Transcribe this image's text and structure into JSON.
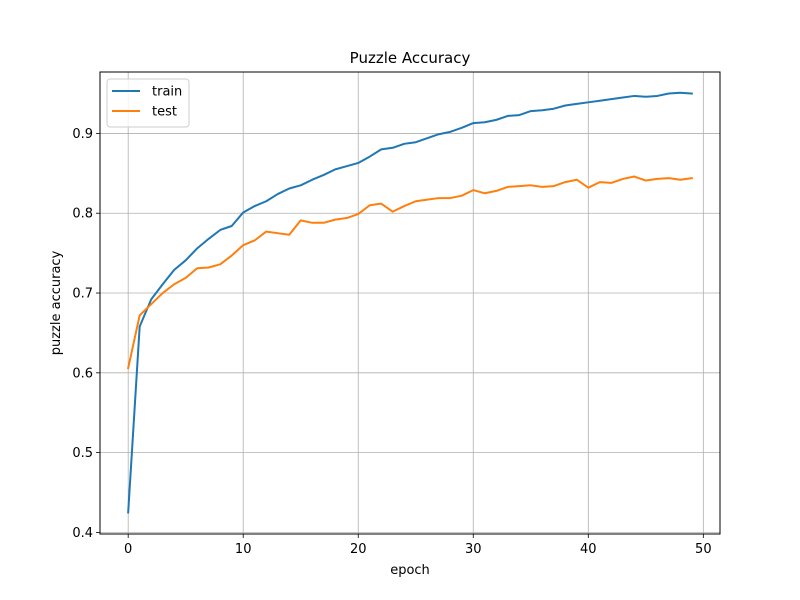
{
  "chart_data": {
    "type": "line",
    "title": "Puzzle Accuracy",
    "xlabel": "epoch",
    "ylabel": "puzzle accuracy",
    "xlim": [
      -2.45,
      51.45
    ],
    "ylim": [
      0.398,
      0.977
    ],
    "xticks": [
      0,
      10,
      20,
      30,
      40,
      50
    ],
    "yticks": [
      0.4,
      0.5,
      0.6,
      0.7,
      0.8,
      0.9
    ],
    "grid": true,
    "legend_position": "top-left",
    "x": [
      0,
      1,
      2,
      3,
      4,
      5,
      6,
      7,
      8,
      9,
      10,
      11,
      12,
      13,
      14,
      15,
      16,
      17,
      18,
      19,
      20,
      21,
      22,
      23,
      24,
      25,
      26,
      27,
      28,
      29,
      30,
      31,
      32,
      33,
      34,
      35,
      36,
      37,
      38,
      39,
      40,
      41,
      42,
      43,
      44,
      45,
      46,
      47,
      48,
      49
    ],
    "series": [
      {
        "name": "train",
        "color": "#1f77b4",
        "values": [
          0.425,
          0.658,
          0.692,
          0.711,
          0.729,
          0.741,
          0.756,
          0.768,
          0.779,
          0.784,
          0.801,
          0.809,
          0.815,
          0.824,
          0.831,
          0.835,
          0.842,
          0.848,
          0.855,
          0.859,
          0.863,
          0.871,
          0.88,
          0.882,
          0.887,
          0.889,
          0.894,
          0.899,
          0.902,
          0.907,
          0.913,
          0.914,
          0.917,
          0.922,
          0.923,
          0.928,
          0.929,
          0.931,
          0.935,
          0.937,
          0.939,
          0.941,
          0.943,
          0.945,
          0.947,
          0.946,
          0.947,
          0.95,
          0.951,
          0.95
        ]
      },
      {
        "name": "test",
        "color": "#ff7f0e",
        "values": [
          0.606,
          0.672,
          0.686,
          0.7,
          0.711,
          0.719,
          0.731,
          0.732,
          0.736,
          0.747,
          0.76,
          0.766,
          0.777,
          0.775,
          0.773,
          0.791,
          0.788,
          0.788,
          0.792,
          0.794,
          0.799,
          0.81,
          0.812,
          0.802,
          0.809,
          0.815,
          0.817,
          0.819,
          0.819,
          0.822,
          0.829,
          0.825,
          0.828,
          0.833,
          0.834,
          0.835,
          0.833,
          0.834,
          0.839,
          0.842,
          0.832,
          0.839,
          0.838,
          0.843,
          0.846,
          0.841,
          0.843,
          0.844,
          0.842,
          0.844
        ]
      }
    ]
  }
}
